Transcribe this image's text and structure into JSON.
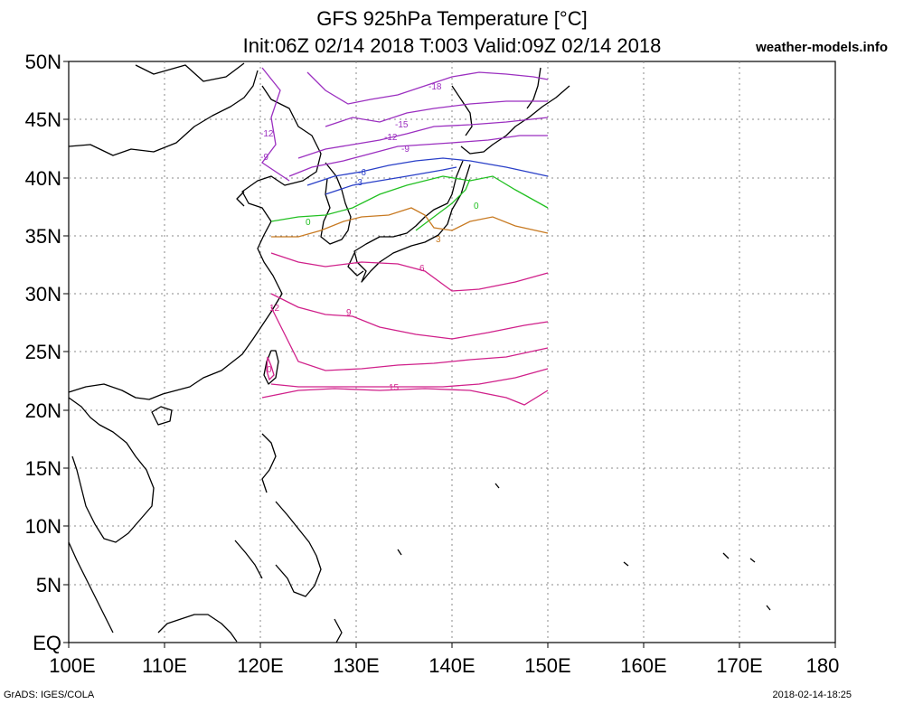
{
  "title": "GFS 925hPa Temperature [°C]",
  "subtitle": "Init:06Z 02/14 2018 T:003 Valid:09Z 02/14 2018",
  "site": "weather-models.info",
  "footer_left": "GrADS: IGES/COLA",
  "footer_right": "2018-02-14-18:25",
  "lat_labels": [
    "50N",
    "45N",
    "40N",
    "35N",
    "30N",
    "25N",
    "20N",
    "15N",
    "10N",
    "5N",
    "EQ"
  ],
  "lon_labels": [
    "100E",
    "110E",
    "120E",
    "130E",
    "140E",
    "150E",
    "160E",
    "170E",
    "180"
  ],
  "contour_labels": [
    {
      "text": "-18",
      "color": "#9b2fc0"
    },
    {
      "text": "-15",
      "color": "#9b2fc0"
    },
    {
      "text": "-12",
      "color": "#9b2fc0"
    },
    {
      "text": "-12",
      "color": "#9b2fc0"
    },
    {
      "text": "-9",
      "color": "#9b2fc0"
    },
    {
      "text": "-9",
      "color": "#9b2fc0"
    },
    {
      "text": "-6",
      "color": "#2a40c8"
    },
    {
      "text": "-3",
      "color": "#2a40c8"
    },
    {
      "text": "0",
      "color": "#22c022"
    },
    {
      "text": "0",
      "color": "#22c022"
    },
    {
      "text": "3",
      "color": "#c87a22"
    },
    {
      "text": "6",
      "color": "#d0208a"
    },
    {
      "text": "9",
      "color": "#d0208a"
    },
    {
      "text": "12",
      "color": "#d0208a"
    },
    {
      "text": "15",
      "color": "#d0208a"
    },
    {
      "text": "0",
      "color": "#d0208a"
    }
  ],
  "colors": {
    "contour_cold": "#9b2fc0",
    "contour_minus6": "#2a40c8",
    "contour_zero": "#22c022",
    "contour_plus3": "#c87a22",
    "contour_warm": "#d0208a",
    "coast": "#000000",
    "grid": "#888888"
  }
}
